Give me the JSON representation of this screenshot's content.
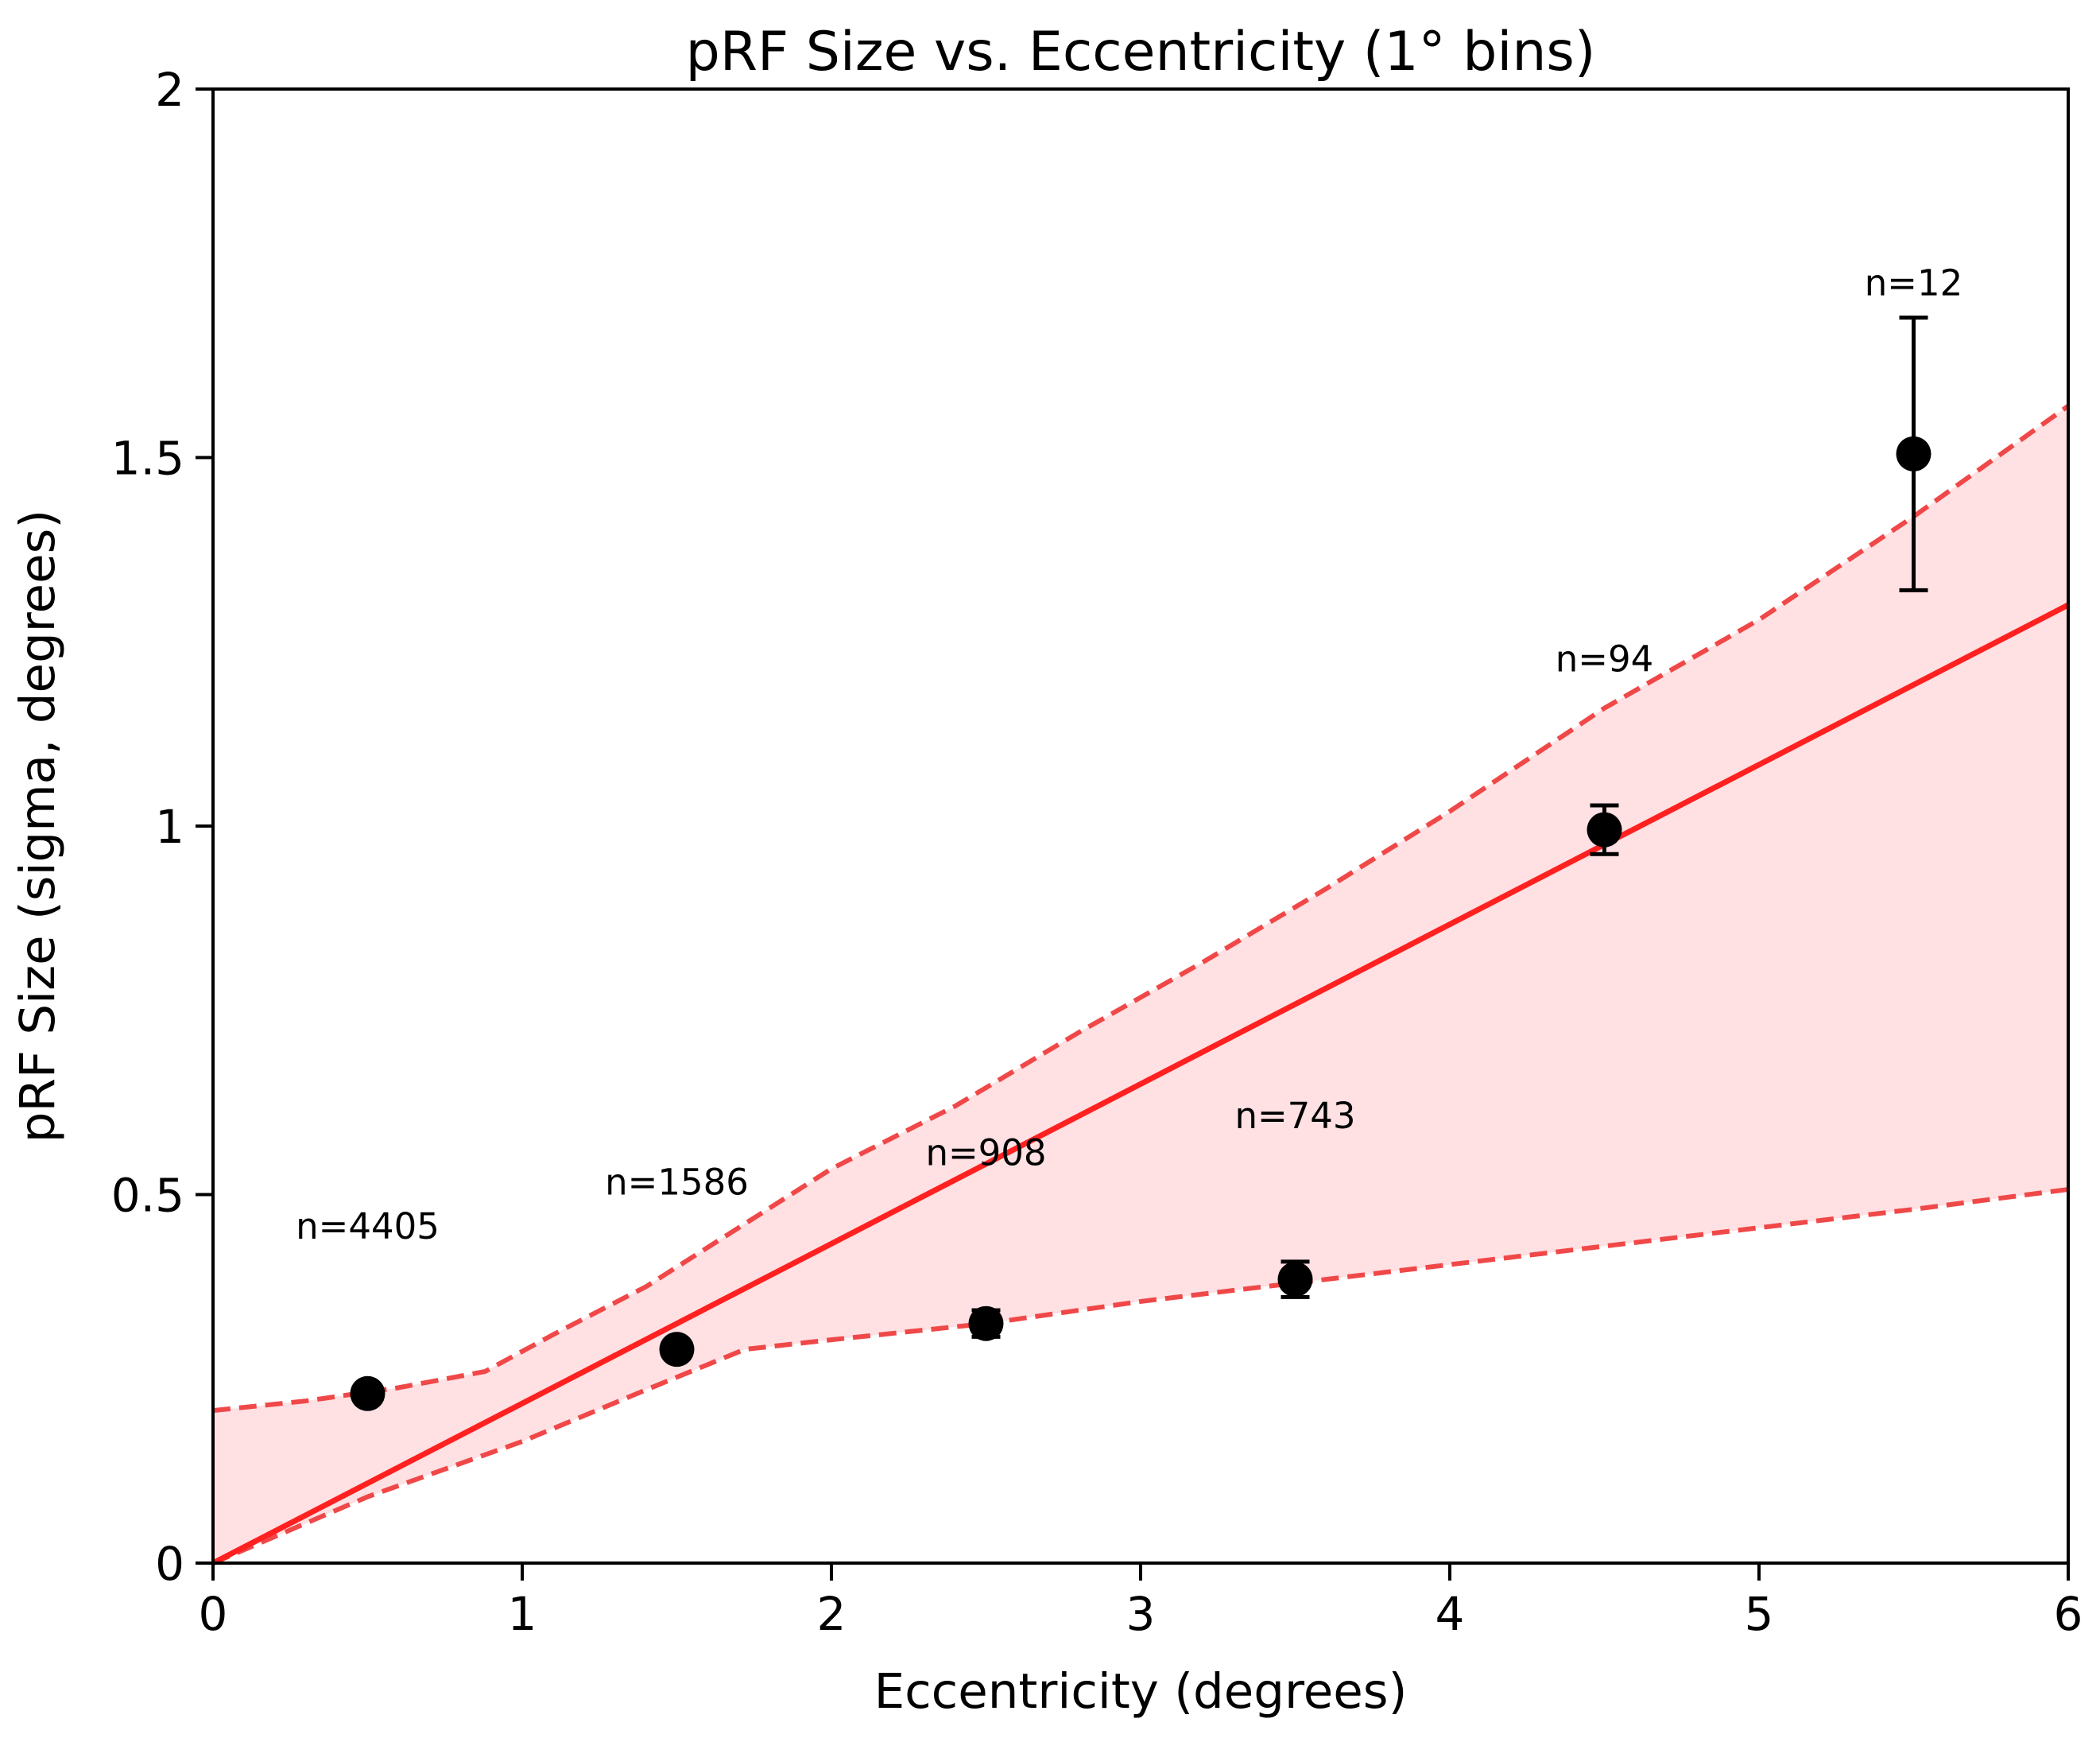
{
  "chart_data": {
    "type": "scatter",
    "title": "pRF Size vs. Eccentricity (1° bins)",
    "xlabel": "Eccentricity (degrees)",
    "ylabel": "pRF Size (sigma, degrees)",
    "xlim": [
      0,
      6
    ],
    "ylim": [
      0,
      2
    ],
    "x_ticks": [
      0,
      1,
      2,
      3,
      4,
      5,
      6
    ],
    "x_tick_labels": [
      "0",
      "1",
      "2",
      "3",
      "4",
      "5",
      "6"
    ],
    "y_ticks": [
      0,
      0.5,
      1,
      1.5,
      2
    ],
    "y_tick_labels": [
      "0",
      "0.5",
      "1",
      "1.5",
      "2"
    ],
    "grid": false,
    "legend": "none",
    "points": {
      "x": [
        0.5,
        1.5,
        2.5,
        3.5,
        4.5,
        5.5
      ],
      "y": [
        0.23,
        0.29,
        0.325,
        0.385,
        0.995,
        1.505
      ],
      "yerr": [
        0.004,
        0.006,
        0.018,
        0.024,
        0.033,
        0.185
      ],
      "color": "#000000"
    },
    "annotations": [
      {
        "text": "n=4405",
        "x": 0.5,
        "y": 0.44
      },
      {
        "text": "n=1586",
        "x": 1.5,
        "y": 0.5
      },
      {
        "text": "n=908",
        "x": 2.5,
        "y": 0.54
      },
      {
        "text": "n=743",
        "x": 3.5,
        "y": 0.59
      },
      {
        "text": "n=94",
        "x": 4.5,
        "y": 1.21
      },
      {
        "text": "n=12",
        "x": 5.5,
        "y": 1.72
      }
    ],
    "fit_line": {
      "x": [
        0,
        6
      ],
      "y": [
        0,
        1.3
      ],
      "color": "#ff2020",
      "style": "solid"
    },
    "confidence_band": {
      "fill_color": "#ffe0e3",
      "line_color": "#f04848",
      "style": "dashed",
      "upper": {
        "x": [
          0,
          0.3,
          0.6,
          0.88,
          1.1,
          1.4,
          1.7,
          2.0,
          2.4,
          2.8,
          3.2,
          3.6,
          4.0,
          4.5,
          5.0,
          5.5,
          6.0
        ],
        "y": [
          0.207,
          0.22,
          0.238,
          0.26,
          0.31,
          0.375,
          0.455,
          0.535,
          0.62,
          0.72,
          0.815,
          0.915,
          1.02,
          1.16,
          1.28,
          1.42,
          1.57
        ]
      },
      "lower": {
        "x": [
          0,
          0.5,
          1.0,
          1.4,
          1.72,
          2.0,
          2.5,
          3.0,
          3.5,
          4.0,
          4.5,
          5.0,
          5.5,
          6.0
        ],
        "y": [
          0,
          0.09,
          0.165,
          0.235,
          0.29,
          0.303,
          0.325,
          0.355,
          0.38,
          0.405,
          0.43,
          0.455,
          0.48,
          0.507
        ]
      }
    }
  }
}
